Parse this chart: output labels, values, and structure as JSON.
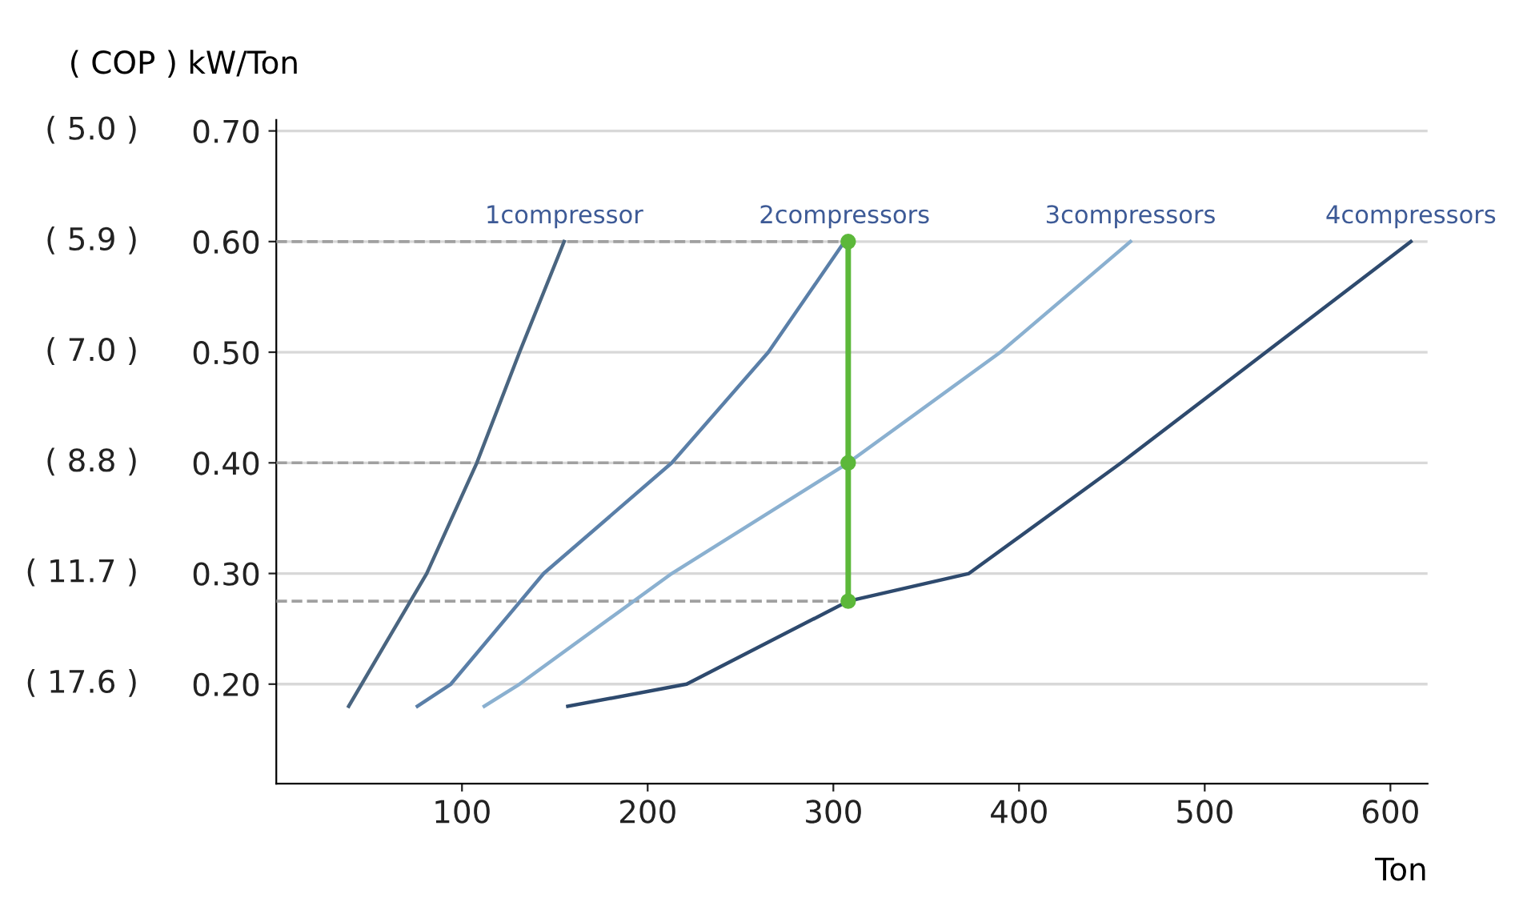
{
  "chart_data": {
    "type": "line",
    "ylabel": "( COP ) kW/Ton",
    "xlabel": "Ton",
    "xlim": [
      0,
      620
    ],
    "xticks": [
      100,
      200,
      300,
      400,
      500,
      600
    ],
    "ylim": [
      0.11,
      0.71
    ],
    "yticks": [
      {
        "value": 0.2,
        "label": "0.20"
      },
      {
        "value": 0.3,
        "label": "0.30"
      },
      {
        "value": 0.4,
        "label": "0.40"
      },
      {
        "value": 0.5,
        "label": "0.50"
      },
      {
        "value": 0.6,
        "label": "0.60"
      },
      {
        "value": 0.7,
        "label": "0.70"
      }
    ],
    "annotations": [
      "( 17.6 )",
      "( 11.7 )",
      "( 8.8 )",
      "( 7.0 )",
      "( 5.9 )",
      "( 5.0 )"
    ],
    "grid": "y",
    "legend": false,
    "series": [
      {
        "type": "line",
        "line_style": "dashed",
        "color": "#a0a0a0",
        "x": [
          0,
          308
        ],
        "values": [
          0.6,
          0.6
        ]
      },
      {
        "type": "line",
        "line_style": "dashed",
        "color": "#a0a0a0",
        "x": [
          0,
          308
        ],
        "values": [
          0.4,
          0.4
        ]
      },
      {
        "type": "line",
        "line_style": "dashed",
        "color": "#a0a0a0",
        "x": [
          0,
          308
        ],
        "values": [
          0.275,
          0.275
        ]
      },
      {
        "name": "1compressor",
        "color": "#4a6580",
        "x": [
          39,
          60,
          81,
          108,
          131,
          155
        ],
        "values": [
          0.18,
          0.24,
          0.3,
          0.4,
          0.5,
          0.6
        ]
      },
      {
        "name": "2compressors",
        "color": "#5a7fa8",
        "x": [
          76,
          94,
          144,
          213,
          265,
          306
        ],
        "values": [
          0.18,
          0.2,
          0.3,
          0.4,
          0.5,
          0.6
        ]
      },
      {
        "name": "3compressors",
        "color": "#8ab0d0",
        "x": [
          112,
          131,
          213,
          308,
          390,
          460
        ],
        "values": [
          0.18,
          0.2,
          0.3,
          0.4,
          0.5,
          0.6
        ]
      },
      {
        "name": "4compressors",
        "color": "#2e4a6e",
        "x": [
          157,
          221,
          308,
          373,
          455,
          533,
          611
        ],
        "values": [
          0.18,
          0.2,
          0.275,
          0.3,
          0.4,
          0.5,
          0.6
        ]
      },
      {
        "type": "line",
        "marker": "circle",
        "color": "#5cb83a",
        "x": [
          308,
          308,
          308
        ],
        "values": [
          0.6,
          0.4,
          0.275
        ]
      }
    ]
  }
}
